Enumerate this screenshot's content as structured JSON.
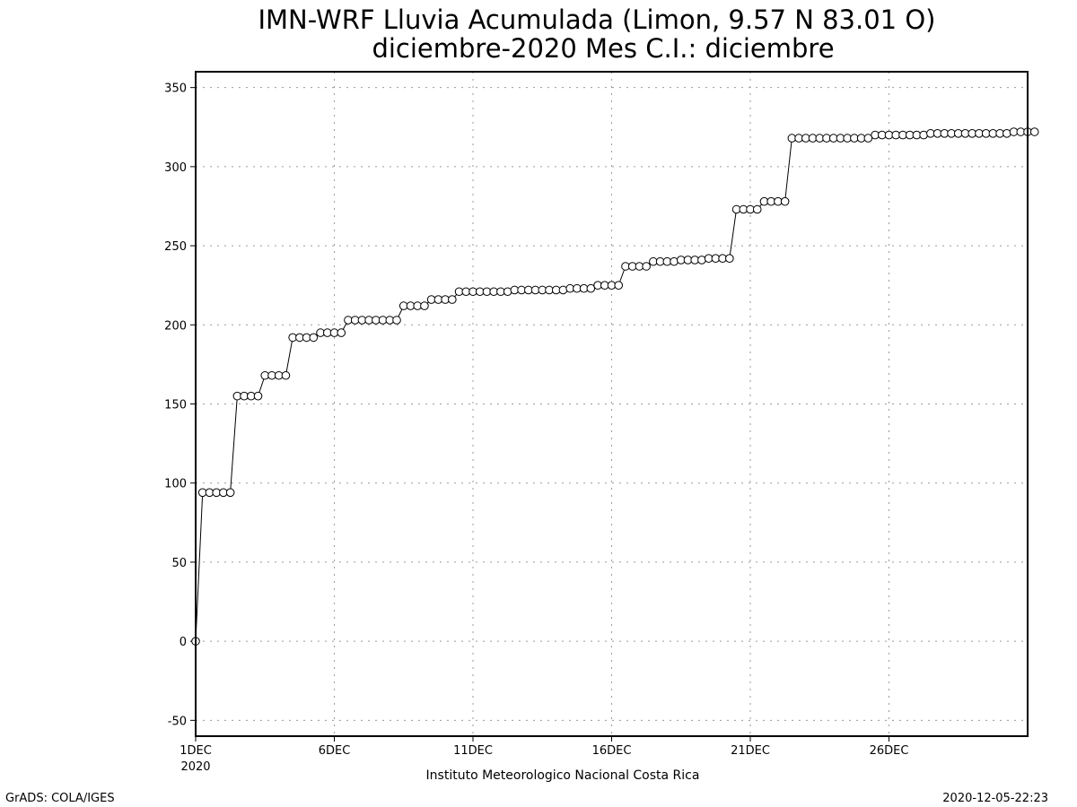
{
  "chart_data": {
    "type": "line",
    "title_line1": "IMN-WRF  Lluvia Acumulada (Limon, 9.57  N 83.01  O)",
    "title_line2": "diciembre-2020 Mes C.I.: diciembre",
    "xlabel": "Instituto Meteorologico Nacional Costa Rica",
    "ylabel": "",
    "x_start_day": 1,
    "x_end_day": 31,
    "ylim": [
      -60,
      360
    ],
    "yticks": [
      -50,
      0,
      50,
      100,
      150,
      200,
      250,
      300,
      350
    ],
    "ytick_labels": [
      "-50",
      "0",
      "50",
      "100",
      "150",
      "200",
      "250",
      "300",
      "350"
    ],
    "xtick_days": [
      1,
      6,
      11,
      16,
      21,
      26
    ],
    "xtick_labels": [
      "1DEC",
      "6DEC",
      "11DEC",
      "16DEC",
      "21DEC",
      "26DEC"
    ],
    "xtick_year": "2020",
    "grid": true,
    "marker": "open-circle",
    "series": [
      {
        "time_step_hours": 6,
        "values": [
          0,
          94,
          94,
          94,
          94,
          94,
          155,
          155,
          155,
          155,
          168,
          168,
          168,
          168,
          192,
          192,
          192,
          192,
          195,
          195,
          195,
          195,
          203,
          203,
          203,
          203,
          203,
          203,
          203,
          203,
          212,
          212,
          212,
          212,
          216,
          216,
          216,
          216,
          221,
          221,
          221,
          221,
          221,
          221,
          221,
          221,
          222,
          222,
          222,
          222,
          222,
          222,
          222,
          222,
          223,
          223,
          223,
          223,
          225,
          225,
          225,
          225,
          237,
          237,
          237,
          237,
          240,
          240,
          240,
          240,
          241,
          241,
          241,
          241,
          242,
          242,
          242,
          242,
          273,
          273,
          273,
          273,
          278,
          278,
          278,
          278,
          318,
          318,
          318,
          318,
          318,
          318,
          318,
          318,
          318,
          318,
          318,
          318,
          320,
          320,
          320,
          320,
          320,
          320,
          320,
          320,
          321,
          321,
          321,
          321,
          321,
          321,
          321,
          321,
          321,
          321,
          321,
          321,
          322,
          322,
          322,
          322
        ]
      }
    ]
  },
  "footer": {
    "left": "GrADS: COLA/IGES",
    "right": "2020-12-05-22:23"
  }
}
